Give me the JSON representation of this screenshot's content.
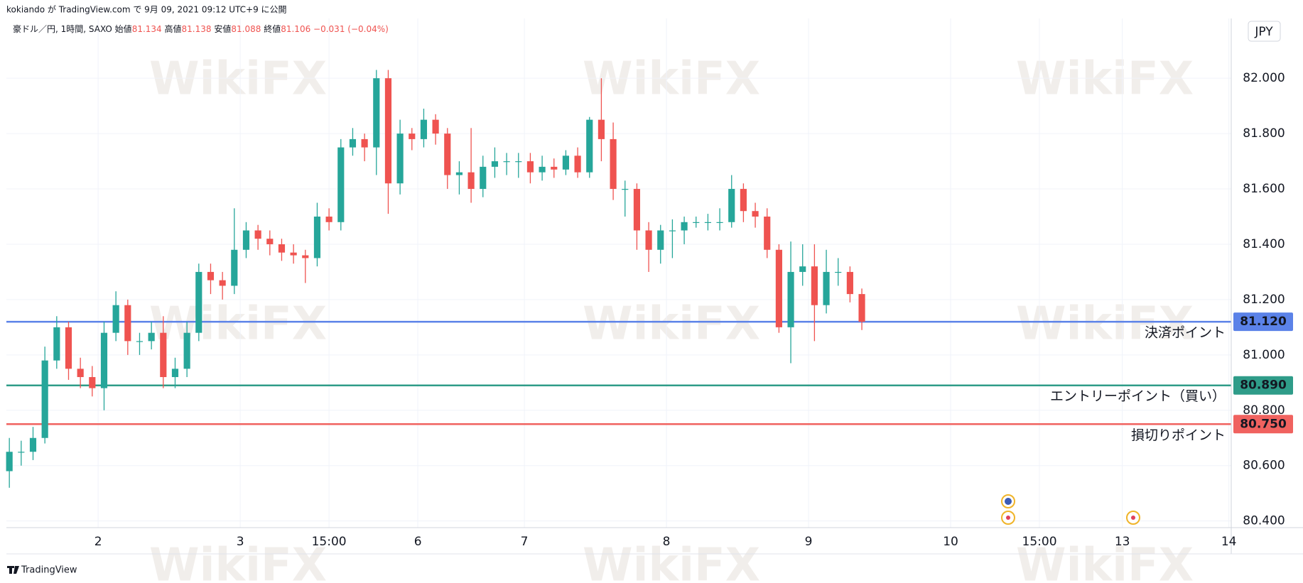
{
  "chart_data": {
    "type": "candlestick",
    "header": "kokiando が TradingView.com で 9月 09, 2021 09:12 UTC+9 に公開",
    "symbol": "豪ドル／円, 1時間, SAXO",
    "ohlc": [
      {
        "label": "始値",
        "value": 81.134
      },
      {
        "label": "高値",
        "value": 81.138
      },
      {
        "label": "安値",
        "value": 81.088
      },
      {
        "label": "終値",
        "value": 81.106
      }
    ],
    "change": "−0.031 (−0.04%)",
    "currency": "JPY",
    "footer": "TradingView",
    "watermark": "WikiFX",
    "up_color": "#26a69a",
    "down_color": "#ef5350",
    "grid": true,
    "x": [
      0,
      2,
      4,
      6,
      8,
      10,
      12,
      14,
      16,
      18,
      20,
      22,
      24,
      26,
      28,
      30,
      32,
      34,
      36,
      38,
      40,
      42,
      44,
      46,
      48,
      50,
      52,
      54,
      56,
      58,
      60,
      62,
      64,
      66,
      68,
      70,
      72,
      74,
      76,
      78,
      80,
      82,
      84,
      86,
      88,
      90,
      92,
      94,
      96,
      98,
      100,
      102,
      104,
      106,
      108,
      110,
      112,
      114,
      116,
      118,
      120,
      122,
      124,
      126,
      128,
      130,
      132,
      134,
      136,
      138,
      140,
      142,
      144
    ],
    "open": [
      80.58,
      80.65,
      80.65,
      80.7,
      80.98,
      81.1,
      80.95,
      80.92,
      80.88,
      81.08,
      81.18,
      81.05,
      81.05,
      81.08,
      80.92,
      80.95,
      81.08,
      81.3,
      81.27,
      81.25,
      81.38,
      81.45,
      81.42,
      81.4,
      81.37,
      81.36,
      81.35,
      81.5,
      81.48,
      81.75,
      81.78,
      81.75,
      82.0,
      81.62,
      81.8,
      81.78,
      81.85,
      81.8,
      81.65,
      81.66,
      81.6,
      81.68,
      81.7,
      81.7,
      81.7,
      81.66,
      81.68,
      81.67,
      81.72,
      81.66,
      81.85,
      81.78,
      81.6,
      81.6,
      81.45,
      81.38,
      81.45,
      81.45,
      81.48,
      81.48,
      81.48,
      81.48,
      81.6,
      81.52,
      81.5,
      81.38,
      81.1,
      81.3,
      81.32,
      81.18,
      81.3,
      81.3,
      81.22
    ],
    "high": [
      80.7,
      80.69,
      80.74,
      81.03,
      81.14,
      81.12,
      80.99,
      80.96,
      81.12,
      81.23,
      81.2,
      81.08,
      81.12,
      81.14,
      80.99,
      81.12,
      81.33,
      81.33,
      81.3,
      81.53,
      81.48,
      81.47,
      81.45,
      81.42,
      81.4,
      81.38,
      81.55,
      81.53,
      81.78,
      81.82,
      81.8,
      82.03,
      82.03,
      81.85,
      81.82,
      81.89,
      81.87,
      81.82,
      81.7,
      81.82,
      81.72,
      81.75,
      81.73,
      81.73,
      81.73,
      81.72,
      81.71,
      81.74,
      81.75,
      81.86,
      82.0,
      81.84,
      81.63,
      81.62,
      81.48,
      81.47,
      81.49,
      81.5,
      81.5,
      81.51,
      81.53,
      81.65,
      81.62,
      81.55,
      81.53,
      81.4,
      81.41,
      81.4,
      81.4,
      81.38,
      81.35,
      81.32,
      81.24
    ],
    "low": [
      80.52,
      80.6,
      80.62,
      80.68,
      80.95,
      80.91,
      80.88,
      80.85,
      80.8,
      81.05,
      81.0,
      81.0,
      81.02,
      80.88,
      80.88,
      80.92,
      81.05,
      81.22,
      81.2,
      81.22,
      81.35,
      81.38,
      81.36,
      81.34,
      81.33,
      81.26,
      81.32,
      81.45,
      81.45,
      81.72,
      81.7,
      81.65,
      81.51,
      81.58,
      81.74,
      81.75,
      81.76,
      81.6,
      81.58,
      81.55,
      81.57,
      81.64,
      81.65,
      81.64,
      81.62,
      81.63,
      81.64,
      81.65,
      81.64,
      81.64,
      81.7,
      81.56,
      81.5,
      81.38,
      81.3,
      81.33,
      81.35,
      81.4,
      81.46,
      81.45,
      81.45,
      81.46,
      81.48,
      81.46,
      81.35,
      81.08,
      80.97,
      81.25,
      81.05,
      81.15,
      81.25,
      81.19,
      81.09
    ],
    "close": [
      80.65,
      80.65,
      80.7,
      80.98,
      81.1,
      80.95,
      80.92,
      80.88,
      81.08,
      81.18,
      81.05,
      81.05,
      81.08,
      80.92,
      80.95,
      81.08,
      81.3,
      81.27,
      81.25,
      81.38,
      81.45,
      81.42,
      81.4,
      81.37,
      81.36,
      81.35,
      81.5,
      81.48,
      81.75,
      81.78,
      81.75,
      82.0,
      81.62,
      81.8,
      81.78,
      81.85,
      81.8,
      81.65,
      81.66,
      81.6,
      81.68,
      81.7,
      81.7,
      81.7,
      81.66,
      81.68,
      81.67,
      81.72,
      81.66,
      81.85,
      81.78,
      81.6,
      81.6,
      81.45,
      81.38,
      81.45,
      81.45,
      81.48,
      81.48,
      81.48,
      81.48,
      81.6,
      81.52,
      81.5,
      81.38,
      81.1,
      81.3,
      81.32,
      81.18,
      81.3,
      81.3,
      81.22,
      81.12
    ],
    "xlim": [
      -0.5,
      206.4
    ],
    "xticks": [
      {
        "value": 15,
        "label": "2"
      },
      {
        "value": 39,
        "label": "3"
      },
      {
        "value": 54,
        "label": "15:00"
      },
      {
        "value": 69,
        "label": "6"
      },
      {
        "value": 87,
        "label": "7"
      },
      {
        "value": 111,
        "label": "8"
      },
      {
        "value": 135,
        "label": "9"
      },
      {
        "value": 159,
        "label": "10"
      },
      {
        "value": 174,
        "label": "15:00"
      },
      {
        "value": 188,
        "label": "13"
      },
      {
        "value": 206,
        "label": "14"
      }
    ],
    "ylim": [
      80.376,
      82.216
    ],
    "yticks": [
      {
        "value": 80.4,
        "label": "80.400"
      },
      {
        "value": 80.6,
        "label": "80.600"
      },
      {
        "value": 80.8,
        "label": "80.800"
      },
      {
        "value": 81.0,
        "label": "81.000"
      },
      {
        "value": 81.2,
        "label": "81.200"
      },
      {
        "value": 81.4,
        "label": "81.400"
      },
      {
        "value": 81.6,
        "label": "81.600"
      },
      {
        "value": 81.8,
        "label": "81.800"
      },
      {
        "value": 82.0,
        "label": "82.000"
      }
    ],
    "hlines": [
      {
        "name": "決済ポイント",
        "value": 81.12,
        "label": "81.120",
        "color": "#5b82e8"
      },
      {
        "name": "エントリーポイント（買い）",
        "value": 80.89,
        "label": "80.890",
        "color": "#2f9c89"
      },
      {
        "name": "損切りポイント",
        "value": 80.75,
        "label": "80.750",
        "color": "#f0625f"
      }
    ]
  }
}
